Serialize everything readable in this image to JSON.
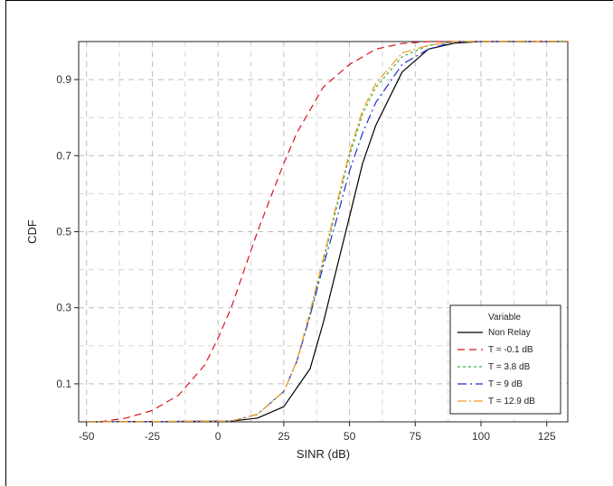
{
  "chart_data": {
    "type": "line",
    "title": "",
    "xlabel": "SINR (dB)",
    "ylabel": "CDF",
    "xlim": [
      -53,
      133
    ],
    "ylim": [
      0,
      1
    ],
    "grid": true,
    "xticks": [
      -50,
      -25,
      0,
      25,
      50,
      75,
      100,
      125
    ],
    "xtick_labels": [
      "-50",
      "-25",
      "0",
      "25",
      "50",
      "75",
      "100",
      "125"
    ],
    "yticks": [
      0.1,
      0.3,
      0.5,
      0.7,
      0.9
    ],
    "ytick_labels": [
      "0.1",
      "0.3",
      "0.5",
      "0.7",
      "0.9"
    ],
    "legend": {
      "title": "Variable",
      "placement": "bottom-right",
      "entries": [
        "Non Relay",
        "T = -0.1 dB",
        "T = 3.8 dB",
        "T = 9 dB",
        "T = 12.9 dB"
      ]
    },
    "series": [
      {
        "name": "Non Relay",
        "color": "#000000",
        "dash": "solid",
        "x": [
          -50,
          5,
          15,
          25,
          35,
          40,
          45,
          50,
          55,
          60,
          70,
          80,
          90,
          100,
          133
        ],
        "y": [
          0,
          0.002,
          0.01,
          0.04,
          0.14,
          0.26,
          0.4,
          0.54,
          0.68,
          0.78,
          0.92,
          0.98,
          0.996,
          1,
          1
        ]
      },
      {
        "name": "T = -0.1 dB",
        "color": "#d8141b",
        "dash": "8,5",
        "x": [
          -45,
          -35,
          -25,
          -15,
          -5,
          0,
          5,
          10,
          15,
          20,
          25,
          30,
          40,
          50,
          60,
          70,
          80,
          133
        ],
        "y": [
          0,
          0.01,
          0.03,
          0.07,
          0.15,
          0.22,
          0.3,
          0.4,
          0.5,
          0.59,
          0.68,
          0.76,
          0.88,
          0.94,
          0.98,
          0.995,
          1,
          1
        ]
      },
      {
        "name": "T = 3.8 dB",
        "color": "#3cb043",
        "dash": "3,3",
        "x": [
          -50,
          5,
          15,
          25,
          30,
          35,
          40,
          45,
          50,
          55,
          60,
          70,
          80,
          90,
          133
        ],
        "y": [
          0,
          0.002,
          0.02,
          0.08,
          0.16,
          0.28,
          0.42,
          0.56,
          0.7,
          0.81,
          0.88,
          0.96,
          0.99,
          1,
          1
        ]
      },
      {
        "name": "T = 9 dB",
        "color": "#1f2fd0",
        "dash": "10,4,2,4",
        "x": [
          -50,
          5,
          15,
          25,
          30,
          35,
          40,
          45,
          50,
          55,
          60,
          70,
          80,
          90,
          133
        ],
        "y": [
          0,
          0.002,
          0.02,
          0.08,
          0.16,
          0.28,
          0.41,
          0.53,
          0.66,
          0.76,
          0.84,
          0.94,
          0.98,
          1,
          1
        ]
      },
      {
        "name": "T = 12.9 dB",
        "color": "#f29b1d",
        "dash": "10,3,2,3",
        "x": [
          -50,
          5,
          15,
          25,
          30,
          35,
          40,
          45,
          50,
          55,
          60,
          70,
          80,
          90,
          133
        ],
        "y": [
          0,
          0.002,
          0.02,
          0.08,
          0.16,
          0.29,
          0.43,
          0.57,
          0.71,
          0.82,
          0.89,
          0.97,
          0.99,
          1,
          1
        ]
      }
    ]
  }
}
